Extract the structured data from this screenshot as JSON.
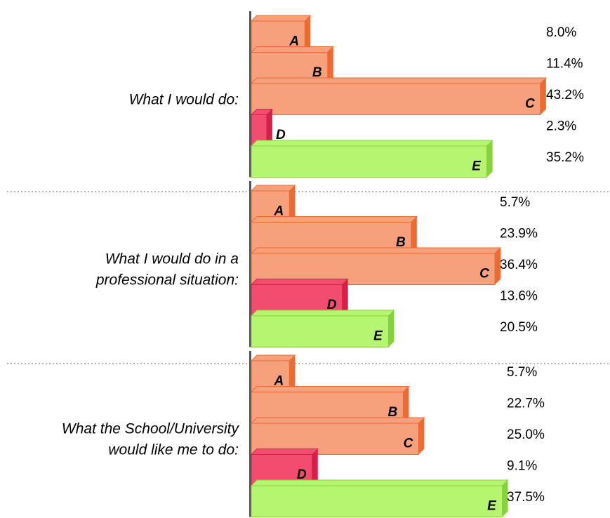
{
  "chart_data": {
    "type": "bar",
    "xlim": [
      0,
      45
    ],
    "colors": {
      "A": "#f7a07c",
      "B": "#f7a07c",
      "C": "#f7a07c",
      "D": "#f24d6f",
      "E": "#b6f56f"
    },
    "edge_colors": {
      "A": "#ee6a33",
      "B": "#ee6a33",
      "C": "#ee6a33",
      "D": "#d81f45",
      "E": "#86d23c"
    },
    "groups": [
      {
        "name": [
          "What I would do:"
        ],
        "categories": [
          "A",
          "B",
          "C",
          "D",
          "E"
        ],
        "values": [
          8.0,
          11.4,
          43.2,
          2.3,
          35.2
        ],
        "value_labels": [
          "8.0%",
          "11.4%",
          "43.2%",
          "2.3%",
          "35.2%"
        ]
      },
      {
        "name": [
          "What I would do in a",
          "professional situation:"
        ],
        "categories": [
          "A",
          "B",
          "C",
          "D",
          "E"
        ],
        "values": [
          5.7,
          23.9,
          36.4,
          13.6,
          20.5
        ],
        "value_labels": [
          "5.7%",
          "23.9%",
          "36.4%",
          "13.6%",
          "20.5%"
        ]
      },
      {
        "name": [
          "What the School/University",
          "would like me to do:"
        ],
        "categories": [
          "A",
          "B",
          "C",
          "D",
          "E"
        ],
        "values": [
          5.7,
          22.7,
          25.0,
          9.1,
          37.5
        ],
        "value_labels": [
          "5.7%",
          "22.7%",
          "25.0%",
          "9.1%",
          "37.5%"
        ]
      }
    ]
  }
}
